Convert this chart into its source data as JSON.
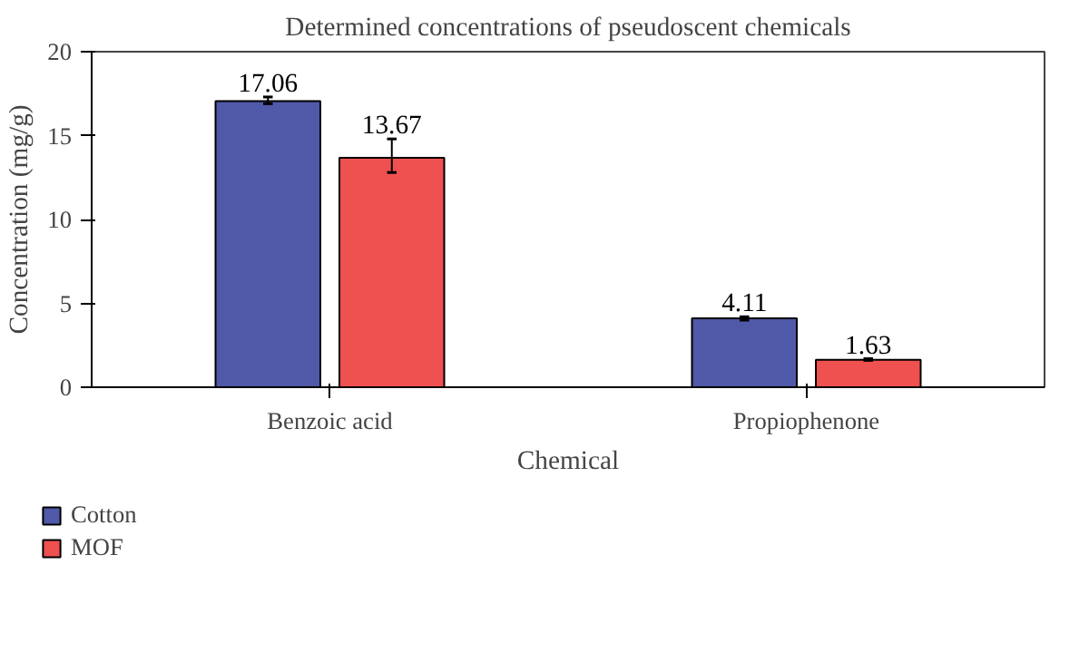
{
  "chart_data": {
    "type": "bar",
    "title": "Determined concentrations of pseudoscent chemicals",
    "xlabel": "Chemical",
    "ylabel": "Concentration (mg/g)",
    "categories": [
      "Benzoic acid",
      "Propiophenone"
    ],
    "series": [
      {
        "name": "Cotton",
        "color": "#5058a8",
        "values": [
          17.06,
          4.11
        ],
        "errors": [
          [
            16.9,
            17.3
          ],
          [
            4.0,
            4.2
          ]
        ]
      },
      {
        "name": "MOF",
        "color": "#ef5050",
        "values": [
          13.67,
          1.63
        ],
        "errors": [
          [
            12.8,
            14.8
          ],
          [
            1.6,
            1.7
          ]
        ]
      }
    ],
    "ylim": [
      0,
      20
    ],
    "yticks": [
      0,
      5,
      10,
      15,
      20
    ],
    "data_labels": true,
    "grid": false,
    "legend": "bottom left"
  }
}
